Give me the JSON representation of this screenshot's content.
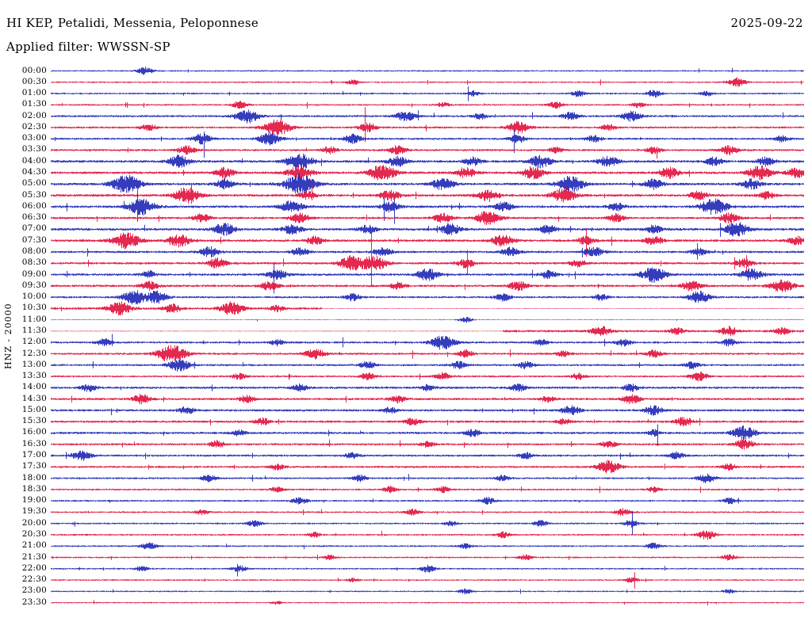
{
  "header": {
    "station_title": "HI KEP, Petalidi, Messenia, Peloponnese",
    "date": "2025-09-22",
    "filter_label": "Applied filter: WWSSN-SP"
  },
  "y_axis_label": "HNZ - 20000",
  "chart_data": {
    "type": "line",
    "subtype": "helicorder",
    "title": "HI KEP, Petalidi, Messenia, Peloponnese",
    "date": "2025-09-22",
    "filter": "WWSSN-SP",
    "channel": "HNZ",
    "scale": 20000,
    "row_duration_minutes": 30,
    "legend": "none",
    "grid": "off",
    "seed": 77,
    "colors": {
      "b": "#1e27b4",
      "r": "#e1103c"
    },
    "rows": [
      {
        "t": "00:00",
        "c": "b",
        "n": 0.8,
        "e": [
          [
            0.125,
            3.5
          ]
        ]
      },
      {
        "t": "00:30",
        "c": "r",
        "n": 0.8,
        "e": [
          [
            0.4,
            2.5
          ],
          [
            0.91,
            4.5
          ]
        ]
      },
      {
        "t": "01:00",
        "c": "b",
        "n": 0.9,
        "e": [
          [
            0.56,
            2.5
          ],
          [
            0.7,
            3
          ],
          [
            0.8,
            3.5
          ],
          [
            0.87,
            2.5
          ]
        ]
      },
      {
        "t": "01:30",
        "c": "r",
        "n": 0.9,
        "e": [
          [
            0.25,
            3.5
          ],
          [
            0.52,
            2.5
          ],
          [
            0.67,
            3
          ],
          [
            0.78,
            2.5
          ]
        ]
      },
      {
        "t": "02:00",
        "c": "b",
        "n": 1.1,
        "e": [
          [
            0.26,
            7
          ],
          [
            0.47,
            5
          ],
          [
            0.57,
            3
          ],
          [
            0.69,
            4
          ],
          [
            0.77,
            5
          ]
        ]
      },
      {
        "t": "02:30",
        "c": "r",
        "n": 1.1,
        "e": [
          [
            0.13,
            3.5
          ],
          [
            0.3,
            8
          ],
          [
            0.42,
            4.5
          ],
          [
            0.62,
            6
          ],
          [
            0.74,
            3
          ]
        ]
      },
      {
        "t": "03:00",
        "c": "b",
        "n": 1.1,
        "e": [
          [
            0.2,
            5
          ],
          [
            0.29,
            6
          ],
          [
            0.4,
            4.5
          ],
          [
            0.62,
            4
          ],
          [
            0.72,
            3.5
          ],
          [
            0.97,
            3
          ]
        ]
      },
      {
        "t": "03:30",
        "c": "r",
        "n": 1.1,
        "e": [
          [
            0.18,
            4.5
          ],
          [
            0.37,
            3.5
          ],
          [
            0.46,
            4.5
          ],
          [
            0.67,
            3
          ],
          [
            0.8,
            3.5
          ],
          [
            0.9,
            4.5
          ]
        ]
      },
      {
        "t": "04:00",
        "c": "b",
        "n": 1.3,
        "e": [
          [
            0.17,
            6
          ],
          [
            0.33,
            8
          ],
          [
            0.46,
            5
          ],
          [
            0.56,
            4
          ],
          [
            0.65,
            6
          ],
          [
            0.74,
            5.5
          ],
          [
            0.88,
            4
          ],
          [
            0.95,
            4.5
          ]
        ]
      },
      {
        "t": "04:30",
        "c": "r",
        "n": 1.3,
        "e": [
          [
            0.23,
            5
          ],
          [
            0.33,
            7
          ],
          [
            0.44,
            8
          ],
          [
            0.55,
            5
          ],
          [
            0.64,
            6
          ],
          [
            0.82,
            5.5
          ],
          [
            0.94,
            7
          ],
          [
            0.99,
            5
          ]
        ]
      },
      {
        "t": "05:00",
        "c": "b",
        "n": 1.3,
        "e": [
          [
            0.1,
            9
          ],
          [
            0.23,
            5
          ],
          [
            0.33,
            10
          ],
          [
            0.52,
            6
          ],
          [
            0.69,
            8
          ],
          [
            0.8,
            5
          ],
          [
            0.93,
            5
          ]
        ]
      },
      {
        "t": "05:30",
        "c": "r",
        "n": 1.3,
        "e": [
          [
            0.18,
            8
          ],
          [
            0.34,
            4
          ],
          [
            0.45,
            5
          ],
          [
            0.58,
            6
          ],
          [
            0.68,
            7
          ],
          [
            0.86,
            4.5
          ],
          [
            0.95,
            4
          ]
        ]
      },
      {
        "t": "06:00",
        "c": "b",
        "n": 1.3,
        "e": [
          [
            0.12,
            8
          ],
          [
            0.32,
            6
          ],
          [
            0.45,
            5
          ],
          [
            0.6,
            4.5
          ],
          [
            0.75,
            4
          ],
          [
            0.88,
            8
          ]
        ]
      },
      {
        "t": "06:30",
        "c": "r",
        "n": 1.2,
        "e": [
          [
            0.2,
            4
          ],
          [
            0.33,
            5
          ],
          [
            0.52,
            4.5
          ],
          [
            0.58,
            7
          ],
          [
            0.75,
            4
          ],
          [
            0.9,
            5
          ]
        ]
      },
      {
        "t": "07:00",
        "c": "b",
        "n": 1.3,
        "e": [
          [
            0.23,
            6
          ],
          [
            0.32,
            5
          ],
          [
            0.42,
            4
          ],
          [
            0.53,
            5.5
          ],
          [
            0.66,
            4.5
          ],
          [
            0.8,
            4
          ],
          [
            0.91,
            7
          ]
        ]
      },
      {
        "t": "07:30",
        "c": "r",
        "n": 1.3,
        "e": [
          [
            0.1,
            8
          ],
          [
            0.17,
            6
          ],
          [
            0.35,
            4
          ],
          [
            0.6,
            6
          ],
          [
            0.71,
            4
          ],
          [
            0.8,
            4.5
          ],
          [
            0.99,
            4
          ]
        ]
      },
      {
        "t": "08:00",
        "c": "b",
        "n": 1.2,
        "e": [
          [
            0.21,
            5
          ],
          [
            0.33,
            4
          ],
          [
            0.44,
            4.5
          ],
          [
            0.61,
            4.5
          ],
          [
            0.72,
            5
          ],
          [
            0.86,
            3.5
          ]
        ]
      },
      {
        "t": "08:30",
        "c": "r",
        "n": 1.2,
        "e": [
          [
            0.22,
            5
          ],
          [
            0.4,
            7.5
          ],
          [
            0.43,
            7
          ],
          [
            0.55,
            4.5
          ],
          [
            0.7,
            3.5
          ],
          [
            0.92,
            4.5
          ]
        ]
      },
      {
        "t": "09:00",
        "c": "b",
        "n": 1.2,
        "e": [
          [
            0.13,
            3.5
          ],
          [
            0.3,
            5
          ],
          [
            0.5,
            6
          ],
          [
            0.66,
            4
          ],
          [
            0.8,
            7.5
          ],
          [
            0.93,
            6
          ]
        ]
      },
      {
        "t": "09:30",
        "c": "r",
        "n": 1.2,
        "e": [
          [
            0.13,
            4.5
          ],
          [
            0.29,
            4.5
          ],
          [
            0.46,
            3.5
          ],
          [
            0.62,
            4.5
          ],
          [
            0.85,
            5
          ],
          [
            0.97,
            6.5
          ]
        ]
      },
      {
        "t": "10:00",
        "c": "b",
        "n": 1.1,
        "e": [
          [
            0.11,
            7
          ],
          [
            0.14,
            6
          ],
          [
            0.4,
            3.5
          ],
          [
            0.6,
            3.5
          ],
          [
            0.73,
            3
          ],
          [
            0.86,
            6
          ]
        ]
      },
      {
        "t": "10:30",
        "c": "r",
        "n": 1.2,
        "seg": [
          [
            0,
            0.36,
            1
          ],
          [
            0.36,
            1,
            0.12
          ]
        ],
        "e": [
          [
            0.09,
            7
          ],
          [
            0.16,
            4.5
          ],
          [
            0.24,
            6.5
          ],
          [
            0.3,
            3
          ]
        ]
      },
      {
        "t": "11:00",
        "c": "b",
        "n": 0.35,
        "e": [
          [
            0.55,
            3
          ]
        ]
      },
      {
        "t": "11:30",
        "c": "r",
        "n": 1.2,
        "seg": [
          [
            0,
            0.6,
            0.12
          ],
          [
            0.6,
            1,
            1
          ]
        ],
        "e": [
          [
            0.73,
            5
          ],
          [
            0.83,
            3.5
          ],
          [
            0.9,
            4.5
          ],
          [
            0.97,
            3.5
          ]
        ]
      },
      {
        "t": "12:00",
        "c": "b",
        "n": 1.1,
        "e": [
          [
            0.07,
            3.5
          ],
          [
            0.3,
            3
          ],
          [
            0.52,
            7
          ],
          [
            0.65,
            3
          ],
          [
            0.76,
            3.5
          ],
          [
            0.9,
            3.5
          ]
        ]
      },
      {
        "t": "12:30",
        "c": "r",
        "n": 1.1,
        "e": [
          [
            0.16,
            9
          ],
          [
            0.35,
            5
          ],
          [
            0.55,
            3.5
          ],
          [
            0.68,
            3
          ],
          [
            0.8,
            3.5
          ]
        ]
      },
      {
        "t": "13:00",
        "c": "b",
        "n": 1.1,
        "e": [
          [
            0.17,
            6
          ],
          [
            0.42,
            3.5
          ],
          [
            0.54,
            3.5
          ],
          [
            0.63,
            3.5
          ],
          [
            0.85,
            3.5
          ]
        ]
      },
      {
        "t": "13:30",
        "c": "r",
        "n": 1.0,
        "e": [
          [
            0.25,
            3
          ],
          [
            0.42,
            3.5
          ],
          [
            0.52,
            3.5
          ],
          [
            0.7,
            3
          ],
          [
            0.86,
            4.5
          ]
        ]
      },
      {
        "t": "14:00",
        "c": "b",
        "n": 1.2,
        "e": [
          [
            0.05,
            3.5
          ],
          [
            0.33,
            3.5
          ],
          [
            0.5,
            3
          ],
          [
            0.62,
            3.5
          ],
          [
            0.77,
            3.5
          ]
        ]
      },
      {
        "t": "14:30",
        "c": "r",
        "n": 1.2,
        "e": [
          [
            0.12,
            4.5
          ],
          [
            0.26,
            3.5
          ],
          [
            0.46,
            3.5
          ],
          [
            0.66,
            3
          ],
          [
            0.77,
            4.5
          ]
        ]
      },
      {
        "t": "15:00",
        "c": "b",
        "n": 1.2,
        "e": [
          [
            0.18,
            3.5
          ],
          [
            0.45,
            3
          ],
          [
            0.69,
            4.5
          ],
          [
            0.8,
            4.5
          ]
        ]
      },
      {
        "t": "15:30",
        "c": "r",
        "n": 1.2,
        "e": [
          [
            0.28,
            3.5
          ],
          [
            0.48,
            3.5
          ],
          [
            0.68,
            3
          ],
          [
            0.84,
            4.5
          ]
        ]
      },
      {
        "t": "16:00",
        "c": "b",
        "n": 1.2,
        "e": [
          [
            0.25,
            3
          ],
          [
            0.56,
            3.5
          ],
          [
            0.8,
            3
          ],
          [
            0.92,
            7
          ]
        ]
      },
      {
        "t": "16:30",
        "c": "r",
        "n": 1.1,
        "e": [
          [
            0.22,
            3.5
          ],
          [
            0.5,
            3
          ],
          [
            0.74,
            3.5
          ],
          [
            0.92,
            5
          ]
        ]
      },
      {
        "t": "17:00",
        "c": "b",
        "n": 1.1,
        "e": [
          [
            0.04,
            5
          ],
          [
            0.4,
            3
          ],
          [
            0.63,
            3
          ],
          [
            0.83,
            3.5
          ]
        ]
      },
      {
        "t": "17:30",
        "c": "r",
        "n": 1.1,
        "e": [
          [
            0.3,
            3
          ],
          [
            0.74,
            6.5
          ],
          [
            0.9,
            3
          ]
        ]
      },
      {
        "t": "18:00",
        "c": "b",
        "n": 1.0,
        "e": [
          [
            0.21,
            3.5
          ],
          [
            0.41,
            3
          ],
          [
            0.6,
            3
          ],
          [
            0.87,
            4.5
          ]
        ]
      },
      {
        "t": "18:30",
        "c": "r",
        "n": 0.95,
        "e": [
          [
            0.3,
            2.5
          ],
          [
            0.45,
            3
          ],
          [
            0.52,
            3
          ],
          [
            0.8,
            2.5
          ]
        ]
      },
      {
        "t": "19:00",
        "c": "b",
        "n": 0.95,
        "e": [
          [
            0.33,
            3.5
          ],
          [
            0.58,
            3.5
          ],
          [
            0.9,
            3
          ]
        ]
      },
      {
        "t": "19:30",
        "c": "r",
        "n": 0.9,
        "e": [
          [
            0.2,
            2.5
          ],
          [
            0.48,
            3
          ],
          [
            0.76,
            3.5
          ]
        ]
      },
      {
        "t": "20:00",
        "c": "b",
        "n": 0.9,
        "e": [
          [
            0.27,
            3
          ],
          [
            0.53,
            2.5
          ],
          [
            0.65,
            3
          ],
          [
            0.77,
            3.5
          ]
        ]
      },
      {
        "t": "20:30",
        "c": "r",
        "n": 0.9,
        "e": [
          [
            0.35,
            2.5
          ],
          [
            0.6,
            3
          ],
          [
            0.87,
            4.5
          ]
        ]
      },
      {
        "t": "21:00",
        "c": "b",
        "n": 0.9,
        "e": [
          [
            0.13,
            3.5
          ],
          [
            0.55,
            2.5
          ],
          [
            0.8,
            3
          ]
        ]
      },
      {
        "t": "21:30",
        "c": "r",
        "n": 0.85,
        "e": [
          [
            0.37,
            2.5
          ],
          [
            0.63,
            2.5
          ],
          [
            0.9,
            3
          ]
        ]
      },
      {
        "t": "22:00",
        "c": "b",
        "n": 0.85,
        "e": [
          [
            0.12,
            2.5
          ],
          [
            0.25,
            3
          ],
          [
            0.5,
            3.5
          ]
        ]
      },
      {
        "t": "22:30",
        "c": "r",
        "n": 0.8,
        "e": [
          [
            0.4,
            2
          ],
          [
            0.77,
            2.5
          ]
        ]
      },
      {
        "t": "23:00",
        "c": "b",
        "n": 0.8,
        "e": [
          [
            0.55,
            2.5
          ],
          [
            0.9,
            2
          ]
        ]
      },
      {
        "t": "23:30",
        "c": "r",
        "n": 0.7,
        "e": [
          [
            0.3,
            1.5
          ]
        ]
      }
    ]
  }
}
